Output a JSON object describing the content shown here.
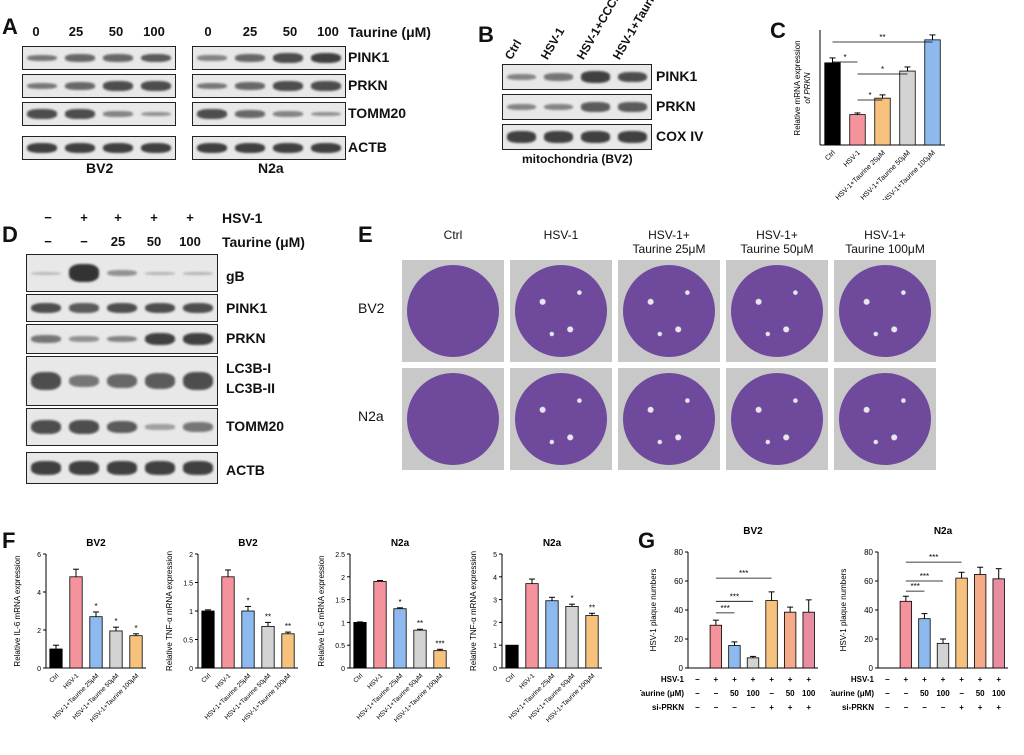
{
  "panels": {
    "A": {
      "letter": "A",
      "taurine_header": "Taurine (μM)",
      "doses": [
        "0",
        "25",
        "50",
        "100"
      ],
      "proteins": [
        "PINK1",
        "PRKN",
        "TOMM20",
        "ACTB"
      ],
      "cells": [
        "BV2",
        "N2a"
      ]
    },
    "B": {
      "letter": "B",
      "lanes": [
        "Ctrl",
        "HSV-1",
        "HSV-1+CCCP",
        "HSV-1+Taurine"
      ],
      "proteins": [
        "PINK1",
        "PRKN",
        "COX IV"
      ],
      "caption": "mitochondria (BV2)"
    },
    "C": {
      "letter": "C",
      "ylabel_1": "Relative mRNA expression",
      "ylabel_2": "of PRKN",
      "sig": [
        "*",
        "*",
        "*",
        "**"
      ]
    },
    "D": {
      "letter": "D",
      "row1_label": "HSV-1",
      "row2_label": "Taurine (μM)",
      "row1": [
        "−",
        "+",
        "+",
        "+",
        "+"
      ],
      "row2": [
        "−",
        "−",
        "25",
        "50",
        "100"
      ],
      "proteins": [
        "gB",
        "PINK1",
        "PRKN",
        "LC3B-I",
        "LC3B-II",
        "TOMM20",
        "ACTB"
      ]
    },
    "E": {
      "letter": "E",
      "cols": [
        "Ctrl",
        "HSV-1",
        "HSV-1+\nTaurine 25μM",
        "HSV-1+\nTaurine 50μM",
        "HSV-1+\nTaurine 100μM"
      ],
      "col_line1": [
        "Ctrl",
        "HSV-1",
        "HSV-1+",
        "HSV-1+",
        "HSV-1+"
      ],
      "col_line2": [
        "",
        "",
        "Taurine 25μM",
        "Taurine 50μM",
        "Taurine 100μM"
      ],
      "rows": [
        "BV2",
        "N2a"
      ]
    },
    "F": {
      "letter": "F"
    },
    "G": {
      "letter": "G",
      "row_hsv": "HSV-1",
      "row_taurine": "Taurine (μM)",
      "row_si": "si-PRKN",
      "hsv": [
        "−",
        "+",
        "+",
        "+",
        "+",
        "+",
        "+"
      ],
      "taurine": [
        "−",
        "−",
        "50",
        "100",
        "−",
        "50",
        "100"
      ],
      "si": [
        "−",
        "−",
        "−",
        "−",
        "+",
        "+",
        "+"
      ],
      "sig": [
        "***",
        "***",
        "***"
      ]
    }
  },
  "chart_data": [
    {
      "id": "C",
      "type": "bar",
      "title": "",
      "ylabel": "Relative mRNA expression of PRKN",
      "categories": [
        "Ctrl",
        "HSV-1",
        "HSV-1+Taurine 25μM",
        "HSV-1+Taurine 50μM",
        "HSV-1+Taurine 100μM"
      ],
      "values": [
        1.0,
        0.37,
        0.57,
        0.9,
        1.28
      ],
      "errors": [
        0.06,
        0.02,
        0.04,
        0.05,
        0.06
      ],
      "colors": [
        "#000000",
        "#f4939b",
        "#f7c17e",
        "#d3d3d3",
        "#8db9ef"
      ],
      "ylim": [
        0,
        1.4
      ]
    },
    {
      "id": "F1",
      "type": "bar",
      "title": "BV2",
      "ylabel": "Relative IL-6 mRNA expression",
      "categories": [
        "Ctrl",
        "HSV-1",
        "HSV-1+Taurine 25μM",
        "HSV-1+Taurine 50μM",
        "HSV-1+Taurine 100μM"
      ],
      "values": [
        1.0,
        4.8,
        2.7,
        1.95,
        1.7
      ],
      "errors": [
        0.2,
        0.4,
        0.25,
        0.2,
        0.1
      ],
      "sig": [
        "",
        "",
        "*",
        "*",
        "*"
      ],
      "colors": [
        "#000000",
        "#f4939b",
        "#8db9ef",
        "#d3d3d3",
        "#f7c17e"
      ],
      "ylim": [
        0,
        6
      ],
      "yticks": [
        0,
        2,
        4,
        6
      ]
    },
    {
      "id": "F2",
      "type": "bar",
      "title": "BV2",
      "ylabel": "Relative TNF-α mRNA expression",
      "categories": [
        "Ctrl",
        "HSV-1",
        "HSV-1+Taurine 25μM",
        "HSV-1+Taurine 50μM",
        "HSV-1+Taurine 100μM"
      ],
      "values": [
        1.0,
        1.6,
        1.0,
        0.73,
        0.6
      ],
      "errors": [
        0.02,
        0.12,
        0.08,
        0.07,
        0.03
      ],
      "sig": [
        "",
        "",
        "*",
        "**",
        "**"
      ],
      "colors": [
        "#000000",
        "#f4939b",
        "#8db9ef",
        "#d3d3d3",
        "#f7c17e"
      ],
      "ylim": [
        0,
        2.0
      ],
      "yticks": [
        0.0,
        0.5,
        1.0,
        1.5,
        2.0
      ]
    },
    {
      "id": "F3",
      "type": "bar",
      "title": "N2a",
      "ylabel": "Relative IL-6 mRNA expression",
      "categories": [
        "Ctrl",
        "HSV-1",
        "HSV-1+Taurine 25μM",
        "HSV-1+Taurine 50μM",
        "HSV-1+Taurine 100μM"
      ],
      "values": [
        1.0,
        1.9,
        1.3,
        0.83,
        0.38
      ],
      "errors": [
        0.01,
        0.02,
        0.02,
        0.02,
        0.03
      ],
      "sig": [
        "",
        "",
        "*",
        "**",
        "***"
      ],
      "colors": [
        "#000000",
        "#f4939b",
        "#8db9ef",
        "#d3d3d3",
        "#f7c17e"
      ],
      "ylim": [
        0,
        2.5
      ],
      "yticks": [
        0.0,
        0.5,
        1.0,
        1.5,
        2.0,
        2.5
      ]
    },
    {
      "id": "F4",
      "type": "bar",
      "title": "N2a",
      "ylabel": "Relative TNF-α mRNA expression",
      "categories": [
        "Ctrl",
        "HSV-1",
        "HSV-1+Taurine 25μM",
        "HSV-1+Taurine 50μM",
        "HSV-1+Taurine 100μM"
      ],
      "values": [
        1.0,
        3.7,
        2.95,
        2.7,
        2.3
      ],
      "errors": [
        0.0,
        0.2,
        0.15,
        0.1,
        0.1
      ],
      "sig": [
        "",
        "",
        "",
        "*",
        "**"
      ],
      "colors": [
        "#000000",
        "#f4939b",
        "#8db9ef",
        "#d3d3d3",
        "#f7c17e"
      ],
      "ylim": [
        0,
        5
      ],
      "yticks": [
        0,
        1,
        2,
        3,
        4,
        5
      ]
    },
    {
      "id": "G1",
      "type": "bar",
      "title": "BV2",
      "ylabel": "HSV-1 plaque numbers",
      "categories": [
        "1",
        "2",
        "3",
        "4",
        "5",
        "6",
        "7"
      ],
      "values": [
        0,
        29.5,
        15.5,
        7,
        46.5,
        38.5,
        38.5
      ],
      "errors": [
        0,
        3.5,
        2.5,
        1,
        6,
        3.5,
        8.5
      ],
      "colors": [
        "#ffffff",
        "#f4939b",
        "#8db9ef",
        "#d3d3d3",
        "#f7c17e",
        "#f4ab8a",
        "#e88ca0"
      ],
      "ylim": [
        0,
        80
      ],
      "yticks": [
        0,
        20,
        40,
        60,
        80
      ]
    },
    {
      "id": "G2",
      "type": "bar",
      "title": "N2a",
      "ylabel": "HSV-1 plaque numbers",
      "categories": [
        "1",
        "2",
        "3",
        "4",
        "5",
        "6",
        "7"
      ],
      "values": [
        0,
        46,
        34,
        17,
        62,
        64.5,
        61.5
      ],
      "errors": [
        0,
        3.5,
        3.5,
        3,
        4,
        5,
        7
      ],
      "colors": [
        "#ffffff",
        "#f4939b",
        "#8db9ef",
        "#d3d3d3",
        "#f7c17e",
        "#f4ab8a",
        "#e88ca0"
      ],
      "ylim": [
        0,
        80
      ],
      "yticks": [
        0,
        20,
        40,
        60,
        80
      ]
    }
  ]
}
